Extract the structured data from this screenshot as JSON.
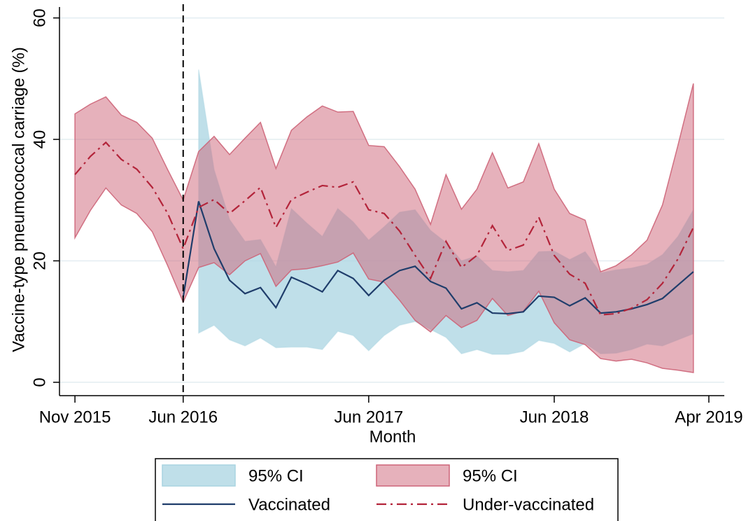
{
  "chart_data": {
    "type": "line",
    "y_label": "Vaccine-type pneumococcal carriage (%)",
    "x_label": "Month",
    "x": [
      "2015-11",
      "2015-12",
      "2016-01",
      "2016-02",
      "2016-03",
      "2016-04",
      "2016-05",
      "2016-06",
      "2016-07",
      "2016-08",
      "2016-09",
      "2016-10",
      "2016-11",
      "2016-12",
      "2017-01",
      "2017-02",
      "2017-03",
      "2017-04",
      "2017-05",
      "2017-06",
      "2017-07",
      "2017-08",
      "2017-09",
      "2017-10",
      "2017-11",
      "2017-12",
      "2018-01",
      "2018-02",
      "2018-03",
      "2018-04",
      "2018-05",
      "2018-06",
      "2018-07",
      "2018-08",
      "2018-09",
      "2018-10",
      "2018-11",
      "2018-12",
      "2019-01",
      "2019-02",
      "2019-03"
    ],
    "xlim": [
      "2015-10",
      "2019-05"
    ],
    "xticks": [
      {
        "value": "2015-11",
        "label": "Nov 2015"
      },
      {
        "value": "2016-06",
        "label": "Jun 2016"
      },
      {
        "value": "2017-06",
        "label": "Jun 2017"
      },
      {
        "value": "2018-06",
        "label": "Jun 2018"
      },
      {
        "value": "2019-04",
        "label": "Apr 2019"
      }
    ],
    "ylim": [
      -2.2,
      61.8
    ],
    "yticks": [
      0,
      20,
      40,
      60
    ],
    "grid": true,
    "vline": "2016-06",
    "series": [
      {
        "name": "95% CI",
        "type": "band",
        "color": "#a9d4e1",
        "upper": [
          null,
          null,
          null,
          null,
          null,
          null,
          null,
          null,
          51.5,
          35,
          26.8,
          23.2,
          23.5,
          19.0,
          28.6,
          26.2,
          24.0,
          28.6,
          26.4,
          23.4,
          25.6,
          28.0,
          28.4,
          25.0,
          23.0,
          20.0,
          20.8,
          18.4,
          18.2,
          18.4,
          21.5,
          21.6,
          20.2,
          21.5,
          18.0,
          18.5,
          18.8,
          19.4,
          21.0,
          24.0,
          28.4
        ],
        "lower": [
          null,
          null,
          null,
          null,
          null,
          null,
          null,
          null,
          8.1,
          9.4,
          7.0,
          6.0,
          7.3,
          5.7,
          5.8,
          5.8,
          5.4,
          8.4,
          7.7,
          5.2,
          7.7,
          9.4,
          10.0,
          8.7,
          7.4,
          4.7,
          5.4,
          4.6,
          4.6,
          5.1,
          6.9,
          6.4,
          5.0,
          6.4,
          4.7,
          4.8,
          5.4,
          6.3,
          6.0,
          7.0,
          8.0
        ]
      },
      {
        "name": "95% CI",
        "type": "band",
        "color": "#cd6478",
        "upper": [
          44.2,
          45.8,
          47.0,
          44.0,
          42.8,
          40.2,
          35,
          30.0,
          38,
          40.5,
          37.5,
          40.2,
          42.8,
          35.2,
          41.5,
          43.7,
          45.5,
          44.5,
          44.6,
          39.0,
          38.8,
          35.5,
          31.8,
          26.0,
          34.2,
          28.5,
          31.8,
          37.8,
          32.0,
          33.0,
          39.3,
          31.8,
          27.8,
          26.7,
          18.2,
          19.2,
          21.0,
          23.4,
          29.2,
          39.0,
          49.2
        ],
        "lower": [
          23.8,
          28.3,
          32.0,
          29.2,
          27.8,
          24.8,
          19.2,
          13.2,
          18.9,
          19.7,
          17.7,
          20.0,
          21.2,
          15.8,
          18.5,
          18.7,
          19.2,
          19.8,
          21.3,
          17.0,
          16.5,
          13.5,
          10.2,
          8.3,
          11.0,
          9.0,
          10.2,
          13.8,
          11.0,
          11.7,
          15.0,
          9.8,
          7.0,
          6.2,
          3.9,
          3.5,
          3.8,
          3.2,
          2.3,
          2.0,
          1.6
        ]
      },
      {
        "name": "Vaccinated",
        "type": "solid",
        "color": "#1f3d6b",
        "values": [
          null,
          null,
          null,
          null,
          null,
          null,
          null,
          14.0,
          29.8,
          22.0,
          16.8,
          14.6,
          15.6,
          12.3,
          17.3,
          16.2,
          14.9,
          18.4,
          17.1,
          14.3,
          16.8,
          18.4,
          19.1,
          16.6,
          15.5,
          12.1,
          13.1,
          11.4,
          11.3,
          11.6,
          14.2,
          14.0,
          12.6,
          13.9,
          11.4,
          11.6,
          12.1,
          12.8,
          13.8,
          16.0,
          18.2
        ]
      },
      {
        "name": "Under-vaccinated",
        "type": "dashdot",
        "color": "#b3243a",
        "values": [
          34.2,
          37.2,
          39.5,
          36.7,
          35.1,
          32.1,
          27.8,
          22.0,
          28.8,
          30.1,
          27.8,
          29.9,
          32.1,
          25.5,
          30.1,
          31.3,
          32.4,
          32.1,
          33.0,
          28.4,
          27.8,
          24.9,
          20.9,
          17.1,
          23.2,
          18.9,
          20.9,
          25.8,
          21.7,
          22.6,
          27.2,
          20.9,
          17.8,
          16.3,
          11.1,
          11.3,
          12.2,
          13.6,
          16.3,
          20.3,
          25.5
        ]
      }
    ]
  }
}
